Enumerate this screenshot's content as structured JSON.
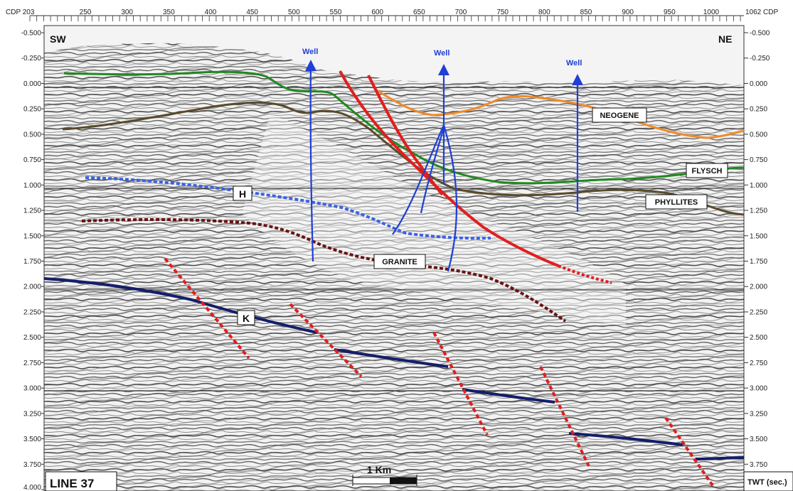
{
  "header": {
    "cdp_label_left": "CDP 203",
    "cdp_label_right": "1062 CDP",
    "cdp_ticks": [
      "250",
      "300",
      "350",
      "400",
      "450",
      "500",
      "550",
      "600",
      "650",
      "700",
      "750",
      "800",
      "850",
      "900",
      "950",
      "1000"
    ]
  },
  "left_axis": [
    "-0.500",
    "-0.250",
    "0.000",
    "0.250",
    "0.500",
    "0.750",
    "1.000",
    "1.250",
    "1.500",
    "1.750",
    "2.000",
    "2.250",
    "2.500",
    "2.750",
    "3.000",
    "3.250",
    "3.500",
    "3.750",
    "4.000"
  ],
  "right_axis": [
    "-0.500",
    "-0.250",
    "0.000",
    "0.250",
    "0.500",
    "0.750",
    "1.000",
    "1.250",
    "1.500",
    "1.750",
    "2.000",
    "2.250",
    "2.500",
    "2.750",
    "3.000",
    "3.250",
    "3.500",
    "3.750"
  ],
  "orientation": {
    "left": "SW",
    "right": "NE"
  },
  "wells": [
    {
      "label": "Well"
    },
    {
      "label": "Well"
    },
    {
      "label": "Well"
    }
  ],
  "horizons": {
    "neogene": "NEOGENE",
    "flysch": "FLYSCH",
    "phyllites": "PHYLLITES",
    "granite": "GRANITE",
    "h": "H",
    "k": "K"
  },
  "colors": {
    "neogene": "#f08a2a",
    "flysch": "#1f8a1f",
    "phyllites": "#5a4a2a",
    "granite": "#6a1212",
    "h": "#3a62e6",
    "k": "#141e6a",
    "fault": "#e21e1e",
    "well": "#1f3fd6"
  },
  "footer": {
    "line_title": "LINE 37",
    "scale_label": "1 Km",
    "twt_label": "TWT (sec.)"
  }
}
